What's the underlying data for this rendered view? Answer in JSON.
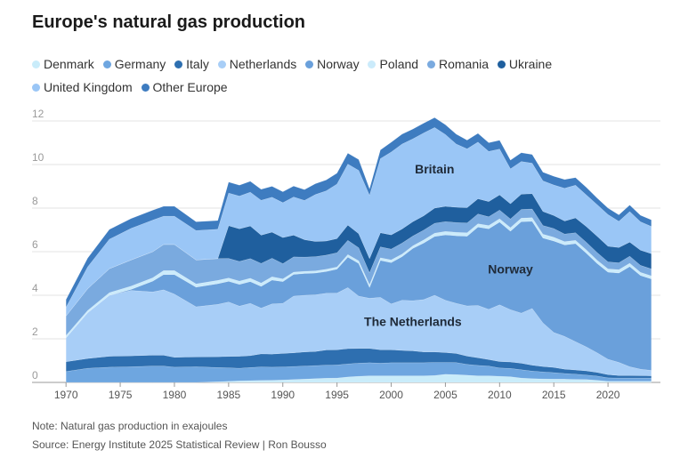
{
  "chart_data": {
    "type": "area",
    "title": "Europe's natural gas production",
    "ylim": [
      0,
      12
    ],
    "xlim": [
      1969,
      2025
    ],
    "y_ticks": [
      0,
      2,
      4,
      6,
      8,
      10,
      12
    ],
    "x_ticks": [
      1970,
      1975,
      1980,
      1985,
      1990,
      1995,
      2000,
      2005,
      2010,
      2015,
      2020
    ],
    "x": [
      1970,
      1972,
      1974,
      1976,
      1978,
      1979,
      1980,
      1982,
      1984,
      1985,
      1986,
      1987,
      1988,
      1989,
      1990,
      1991,
      1992,
      1993,
      1994,
      1995,
      1996,
      1997,
      1998,
      1999,
      2000,
      2001,
      2002,
      2003,
      2004,
      2005,
      2006,
      2007,
      2008,
      2009,
      2010,
      2011,
      2012,
      2013,
      2014,
      2015,
      2016,
      2017,
      2018,
      2019,
      2020,
      2021,
      2022,
      2023,
      2024
    ],
    "series": [
      {
        "name": "Denmark",
        "color": "#c9ecfa",
        "values": [
          0,
          0,
          0,
          0,
          0,
          0,
          0,
          0,
          0.03,
          0.05,
          0.07,
          0.08,
          0.09,
          0.1,
          0.11,
          0.13,
          0.15,
          0.17,
          0.19,
          0.2,
          0.25,
          0.28,
          0.3,
          0.3,
          0.3,
          0.3,
          0.3,
          0.3,
          0.32,
          0.37,
          0.36,
          0.33,
          0.3,
          0.3,
          0.28,
          0.26,
          0.2,
          0.17,
          0.16,
          0.15,
          0.15,
          0.14,
          0.13,
          0.1,
          0.05,
          0.05,
          0.05,
          0.05,
          0.05
        ]
      },
      {
        "name": "Germany",
        "color": "#6ea6e0",
        "values": [
          0.5,
          0.65,
          0.7,
          0.72,
          0.75,
          0.75,
          0.7,
          0.72,
          0.65,
          0.62,
          0.58,
          0.6,
          0.62,
          0.6,
          0.6,
          0.6,
          0.6,
          0.6,
          0.6,
          0.6,
          0.6,
          0.6,
          0.6,
          0.58,
          0.6,
          0.6,
          0.6,
          0.6,
          0.6,
          0.55,
          0.55,
          0.5,
          0.48,
          0.45,
          0.38,
          0.38,
          0.38,
          0.35,
          0.32,
          0.3,
          0.26,
          0.24,
          0.21,
          0.19,
          0.16,
          0.15,
          0.15,
          0.15,
          0.15
        ]
      },
      {
        "name": "Italy",
        "color": "#2e6fb0",
        "values": [
          0.45,
          0.45,
          0.5,
          0.5,
          0.5,
          0.5,
          0.45,
          0.45,
          0.5,
          0.52,
          0.55,
          0.55,
          0.6,
          0.6,
          0.62,
          0.63,
          0.65,
          0.65,
          0.7,
          0.7,
          0.7,
          0.68,
          0.66,
          0.62,
          0.6,
          0.57,
          0.55,
          0.5,
          0.48,
          0.45,
          0.42,
          0.38,
          0.35,
          0.3,
          0.3,
          0.3,
          0.3,
          0.27,
          0.25,
          0.24,
          0.2,
          0.19,
          0.19,
          0.17,
          0.15,
          0.12,
          0.12,
          0.11,
          0.1
        ]
      },
      {
        "name": "Netherlands",
        "color": "#a8cef7",
        "values": [
          1.1,
          2.1,
          2.8,
          3.0,
          2.9,
          3.0,
          2.9,
          2.3,
          2.4,
          2.5,
          2.3,
          2.4,
          2.1,
          2.3,
          2.3,
          2.6,
          2.6,
          2.6,
          2.6,
          2.6,
          2.8,
          2.4,
          2.3,
          2.4,
          2.1,
          2.3,
          2.3,
          2.4,
          2.6,
          2.4,
          2.3,
          2.3,
          2.4,
          2.3,
          2.6,
          2.4,
          2.3,
          2.6,
          2.0,
          1.6,
          1.5,
          1.3,
          1.1,
          0.9,
          0.7,
          0.6,
          0.4,
          0.3,
          0.25
        ]
      },
      {
        "name": "Norway",
        "color": "#6aa0db",
        "values": [
          0,
          0,
          0,
          0.05,
          0.5,
          0.7,
          0.9,
          0.9,
          0.95,
          0.95,
          1.0,
          1.0,
          1.0,
          1.1,
          1.0,
          1.0,
          1.0,
          1.0,
          1.0,
          1.1,
          1.4,
          1.5,
          0.5,
          1.7,
          1.9,
          2.0,
          2.4,
          2.6,
          2.7,
          3.0,
          3.1,
          3.2,
          3.6,
          3.7,
          3.8,
          3.6,
          4.2,
          4.0,
          3.9,
          4.2,
          4.2,
          4.5,
          4.3,
          4.1,
          4.0,
          4.1,
          4.6,
          4.3,
          4.2
        ]
      },
      {
        "name": "Poland",
        "color": "#cbebfb",
        "values": [
          0.1,
          0.1,
          0.12,
          0.15,
          0.15,
          0.18,
          0.18,
          0.15,
          0.15,
          0.15,
          0.15,
          0.15,
          0.15,
          0.15,
          0.12,
          0.1,
          0.1,
          0.1,
          0.1,
          0.1,
          0.12,
          0.12,
          0.12,
          0.12,
          0.12,
          0.12,
          0.12,
          0.14,
          0.15,
          0.16,
          0.16,
          0.16,
          0.15,
          0.15,
          0.15,
          0.16,
          0.16,
          0.17,
          0.17,
          0.17,
          0.15,
          0.15,
          0.15,
          0.15,
          0.15,
          0.15,
          0.15,
          0.14,
          0.14
        ]
      },
      {
        "name": "Romania",
        "color": "#7aaadf",
        "values": [
          0.9,
          1.0,
          1.1,
          1.2,
          1.2,
          1.2,
          1.2,
          1.1,
          1.0,
          0.9,
          0.9,
          0.9,
          0.9,
          0.85,
          0.7,
          0.7,
          0.65,
          0.65,
          0.65,
          0.65,
          0.65,
          0.6,
          0.55,
          0.5,
          0.5,
          0.5,
          0.45,
          0.45,
          0.45,
          0.45,
          0.45,
          0.45,
          0.45,
          0.4,
          0.4,
          0.4,
          0.4,
          0.4,
          0.4,
          0.4,
          0.35,
          0.35,
          0.35,
          0.35,
          0.32,
          0.32,
          0.32,
          0.32,
          0.32
        ]
      },
      {
        "name": "Ukraine",
        "color": "#1f5f9e",
        "values": [
          0,
          0,
          0,
          0,
          0,
          0,
          0,
          0,
          0,
          1.5,
          1.5,
          1.5,
          1.3,
          1.2,
          1.2,
          1.0,
          0.8,
          0.7,
          0.65,
          0.65,
          0.7,
          0.65,
          0.65,
          0.65,
          0.65,
          0.65,
          0.66,
          0.66,
          0.7,
          0.7,
          0.7,
          0.7,
          0.7,
          0.7,
          0.7,
          0.7,
          0.7,
          0.7,
          0.65,
          0.6,
          0.6,
          0.68,
          0.72,
          0.75,
          0.72,
          0.7,
          0.65,
          0.7,
          0.7
        ]
      },
      {
        "name": "United Kingdom",
        "color": "#9ac6f6",
        "values": [
          0.4,
          1.0,
          1.35,
          1.45,
          1.45,
          1.3,
          1.3,
          1.35,
          1.35,
          1.5,
          1.5,
          1.55,
          1.6,
          1.6,
          1.6,
          1.75,
          1.8,
          2.15,
          2.3,
          2.5,
          2.8,
          2.9,
          2.9,
          3.4,
          3.8,
          3.9,
          3.8,
          3.8,
          3.7,
          3.3,
          2.9,
          2.7,
          2.6,
          2.3,
          2.1,
          1.6,
          1.5,
          1.4,
          1.4,
          1.4,
          1.5,
          1.5,
          1.45,
          1.45,
          1.45,
          1.2,
          1.4,
          1.3,
          1.25
        ]
      },
      {
        "name": "Other Europe",
        "color": "#3e7cc0",
        "values": [
          0.35,
          0.4,
          0.45,
          0.45,
          0.45,
          0.45,
          0.45,
          0.4,
          0.4,
          0.5,
          0.5,
          0.5,
          0.5,
          0.5,
          0.5,
          0.5,
          0.5,
          0.5,
          0.5,
          0.5,
          0.5,
          0.5,
          0.3,
          0.4,
          0.45,
          0.45,
          0.45,
          0.45,
          0.45,
          0.45,
          0.45,
          0.4,
          0.4,
          0.4,
          0.4,
          0.4,
          0.4,
          0.4,
          0.4,
          0.4,
          0.4,
          0.35,
          0.35,
          0.3,
          0.3,
          0.3,
          0.3,
          0.3,
          0.3
        ]
      }
    ],
    "legend": [
      "Denmark",
      "Germany",
      "Italy",
      "Netherlands",
      "Norway",
      "Poland",
      "Romania",
      "Ukraine",
      "United Kingdom",
      "Other Europe"
    ],
    "annotations": [
      {
        "text": "Britain",
        "x": 2004,
        "y": 9.6
      },
      {
        "text": "Norway",
        "x": 2011,
        "y": 5.0
      },
      {
        "text": "The Netherlands",
        "x": 2002,
        "y": 2.6
      }
    ]
  },
  "note": "Note: Natural gas production in exajoules",
  "source": "Source: Energy Institute 2025 Statistical Review | Ron Bousso"
}
